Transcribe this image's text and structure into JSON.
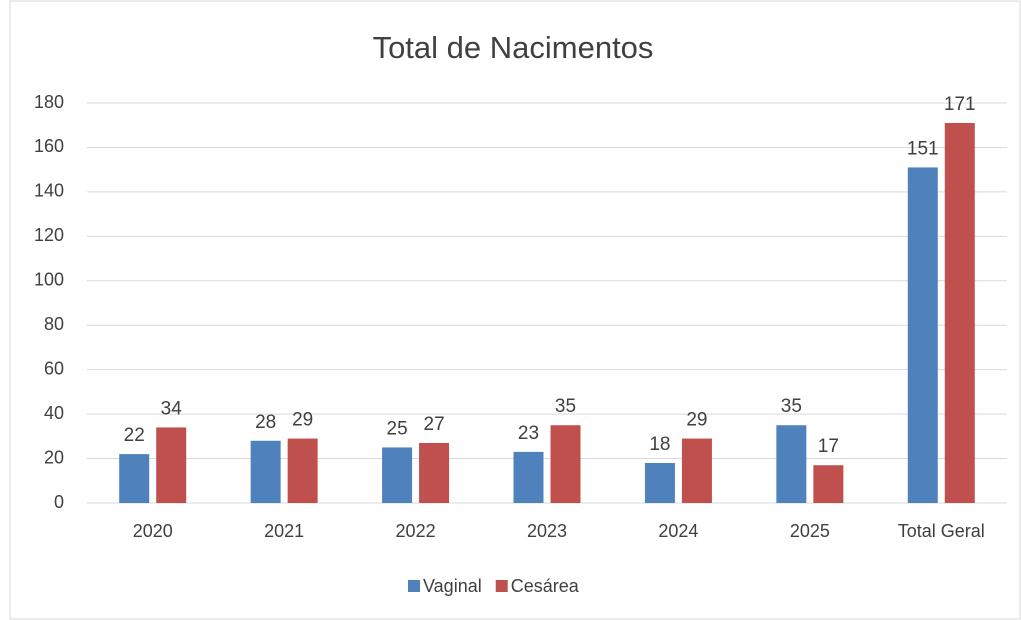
{
  "chart_data": {
    "type": "bar",
    "title": "Total de Nacimentos",
    "categories": [
      "2020",
      "2021",
      "2022",
      "2023",
      "2024",
      "2025",
      "Total Geral"
    ],
    "series": [
      {
        "name": "Vaginal",
        "color": "#4f81bd",
        "values": [
          22,
          28,
          25,
          23,
          18,
          35,
          151
        ]
      },
      {
        "name": "Cesárea",
        "color": "#c0504d",
        "values": [
          34,
          29,
          27,
          35,
          29,
          17,
          171
        ]
      }
    ],
    "ylim": [
      0,
      180
    ],
    "yticks": [
      0,
      20,
      40,
      60,
      80,
      100,
      120,
      140,
      160,
      180
    ],
    "grid": true,
    "legend": "bottom"
  }
}
